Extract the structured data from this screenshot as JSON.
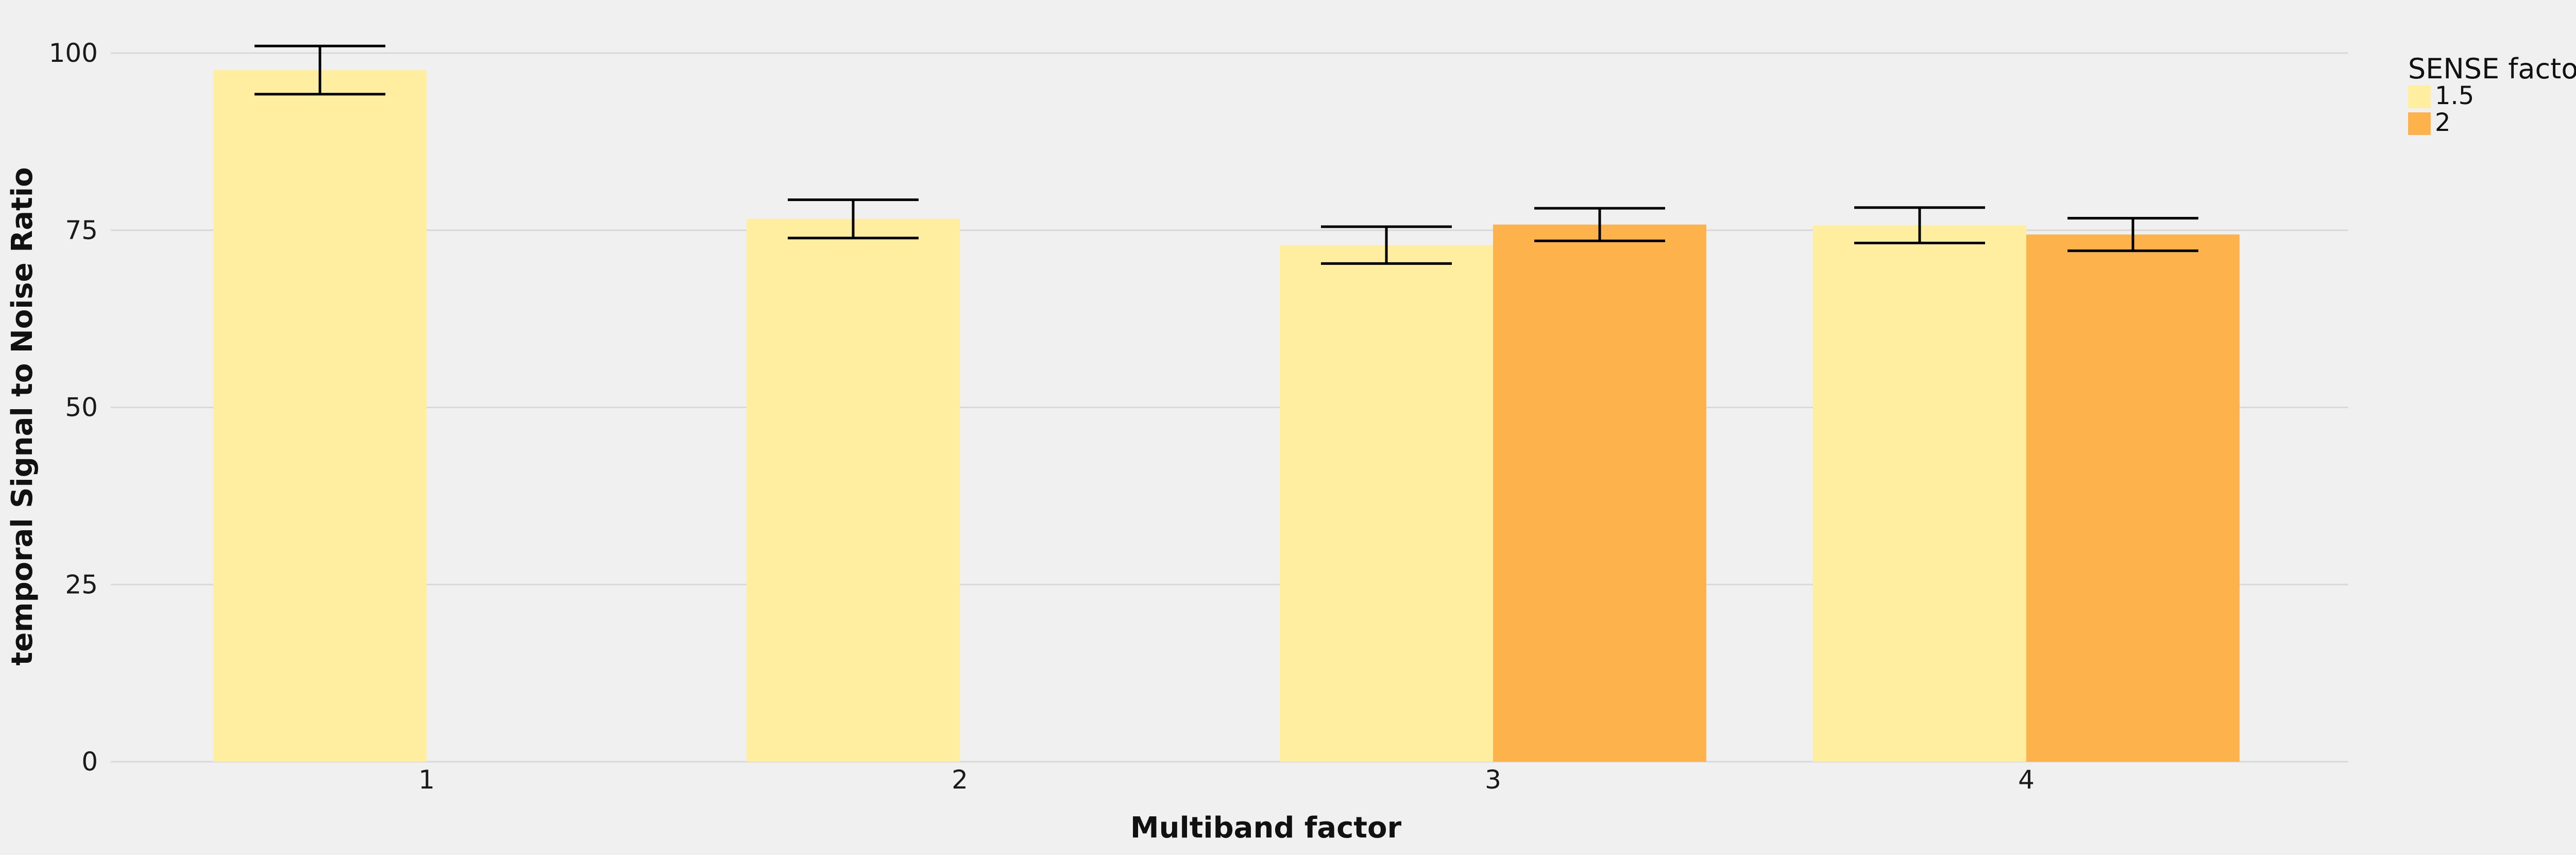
{
  "chart_data": {
    "type": "bar",
    "title": "",
    "xlabel": "Multiband factor",
    "ylabel": "temporal Signal to Noise Ratio",
    "categories": [
      "1",
      "2",
      "3",
      "4"
    ],
    "ylim": [
      0,
      100
    ],
    "yticks": [
      "0",
      "25",
      "50",
      "75",
      "100"
    ],
    "grid": "horizontal",
    "legend": {
      "title": "SENSE factor",
      "placement": "top-right"
    },
    "series": [
      {
        "name": "1.5",
        "color": "#ffeda0",
        "values": [
          97.6,
          76.6,
          72.9,
          75.7
        ],
        "errors": [
          3.4,
          2.7,
          2.6,
          2.5
        ]
      },
      {
        "name": "2",
        "color": "#feb24c",
        "values": [
          null,
          null,
          75.8,
          74.4
        ],
        "errors": [
          null,
          null,
          2.3,
          2.3
        ]
      }
    ],
    "error_color": "#000000",
    "grid_color": "#d9d9d9"
  }
}
